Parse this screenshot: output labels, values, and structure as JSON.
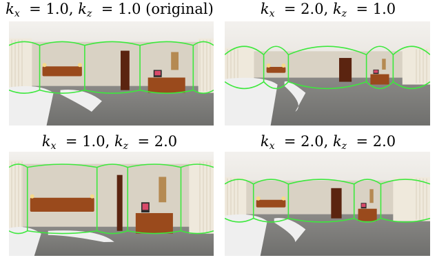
{
  "figure": {
    "panels": [
      {
        "kx": "1.0",
        "kz": "1.0",
        "note": "(original)",
        "scene_alt": "panorama-original"
      },
      {
        "kx": "2.0",
        "kz": "1.0",
        "note": "",
        "scene_alt": "panorama-kx-2"
      },
      {
        "kx": "1.0",
        "kz": "2.0",
        "note": "",
        "scene_alt": "panorama-kz-2"
      },
      {
        "kx": "2.0",
        "kz": "2.0",
        "note": "",
        "scene_alt": "panorama-kx-kz-2"
      }
    ],
    "symbols": {
      "k": "k",
      "x": "x",
      "z": "z",
      "equals": "=",
      "comma": ","
    },
    "colors": {
      "layout_line": "#3de83d",
      "wall": "#d9d2c4",
      "ceiling": "#e9e6e0",
      "floor": "#6f6f6d",
      "wood": "#9a4a1c",
      "bedding": "#efefef",
      "curtain": "#efe9dc"
    }
  }
}
